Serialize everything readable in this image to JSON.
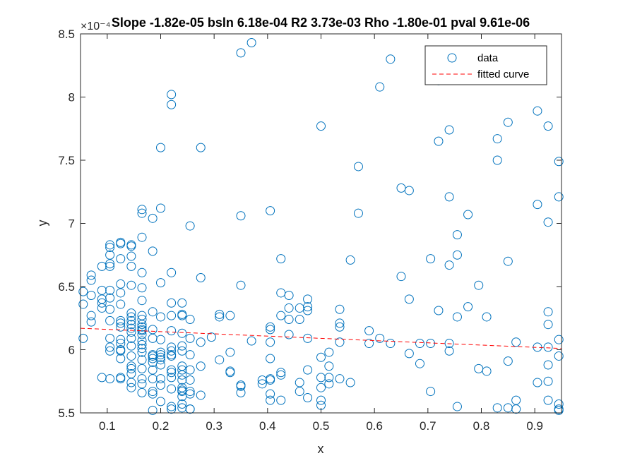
{
  "chart_data": {
    "type": "scatter",
    "title": "Slope -1.82e-05 bsln 6.18e-04 R2 3.73e-03 Rho -1.80e-01 pval 9.61e-06",
    "xlabel": "x",
    "ylabel": "y",
    "y_exponent": "×10⁻⁴",
    "xlim": [
      0.05,
      0.95
    ],
    "ylim": [
      5.5,
      8.5
    ],
    "xticks": [
      "0.1",
      "0.2",
      "0.3",
      "0.4",
      "0.5",
      "0.6",
      "0.7",
      "0.8",
      "0.9"
    ],
    "yticks": [
      "5.5",
      "6",
      "6.5",
      "7",
      "7.5",
      "8",
      "8.5"
    ],
    "grid": false,
    "legend_position": "top-right",
    "legend": [
      "data",
      "fitted curve"
    ],
    "colors": {
      "data": "#0072BD",
      "fit": "#FF0000",
      "axes": "#262626"
    },
    "series": [
      {
        "name": "data",
        "marker": "circle",
        "points": [
          [
            0.055,
            6.46
          ],
          [
            0.055,
            6.36
          ],
          [
            0.055,
            6.09
          ],
          [
            0.07,
            6.59
          ],
          [
            0.07,
            6.55
          ],
          [
            0.07,
            6.43
          ],
          [
            0.07,
            6.27
          ],
          [
            0.07,
            6.22
          ],
          [
            0.09,
            6.66
          ],
          [
            0.09,
            6.47
          ],
          [
            0.09,
            6.4
          ],
          [
            0.09,
            6.37
          ],
          [
            0.09,
            6.33
          ],
          [
            0.09,
            5.78
          ],
          [
            0.105,
            6.83
          ],
          [
            0.105,
            6.81
          ],
          [
            0.105,
            6.75
          ],
          [
            0.105,
            6.68
          ],
          [
            0.105,
            6.66
          ],
          [
            0.105,
            6.47
          ],
          [
            0.105,
            6.41
          ],
          [
            0.105,
            6.32
          ],
          [
            0.105,
            6.23
          ],
          [
            0.105,
            6.09
          ],
          [
            0.105,
            6.02
          ],
          [
            0.105,
            5.99
          ],
          [
            0.105,
            5.77
          ],
          [
            0.125,
            6.85
          ],
          [
            0.125,
            6.84
          ],
          [
            0.125,
            6.72
          ],
          [
            0.125,
            6.52
          ],
          [
            0.125,
            6.45
          ],
          [
            0.125,
            6.36
          ],
          [
            0.125,
            6.23
          ],
          [
            0.125,
            6.21
          ],
          [
            0.125,
            6.18
          ],
          [
            0.125,
            6.08
          ],
          [
            0.125,
            6.05
          ],
          [
            0.125,
            6.0
          ],
          [
            0.125,
            5.99
          ],
          [
            0.125,
            5.93
          ],
          [
            0.125,
            5.78
          ],
          [
            0.125,
            5.77
          ],
          [
            0.145,
            6.83
          ],
          [
            0.145,
            6.82
          ],
          [
            0.145,
            6.74
          ],
          [
            0.145,
            6.66
          ],
          [
            0.145,
            6.51
          ],
          [
            0.145,
            6.29
          ],
          [
            0.145,
            6.26
          ],
          [
            0.145,
            6.23
          ],
          [
            0.145,
            6.2
          ],
          [
            0.145,
            6.17
          ],
          [
            0.145,
            6.14
          ],
          [
            0.145,
            6.09
          ],
          [
            0.145,
            6.03
          ],
          [
            0.145,
            5.95
          ],
          [
            0.145,
            5.87
          ],
          [
            0.145,
            5.85
          ],
          [
            0.145,
            5.81
          ],
          [
            0.145,
            5.74
          ],
          [
            0.145,
            5.7
          ],
          [
            0.165,
            7.11
          ],
          [
            0.165,
            7.08
          ],
          [
            0.165,
            6.89
          ],
          [
            0.165,
            6.61
          ],
          [
            0.165,
            6.49
          ],
          [
            0.165,
            6.39
          ],
          [
            0.165,
            6.27
          ],
          [
            0.165,
            6.24
          ],
          [
            0.165,
            6.2
          ],
          [
            0.165,
            6.18
          ],
          [
            0.165,
            6.16
          ],
          [
            0.165,
            6.15
          ],
          [
            0.165,
            6.12
          ],
          [
            0.165,
            6.07
          ],
          [
            0.165,
            6.04
          ],
          [
            0.165,
            6.01
          ],
          [
            0.165,
            5.98
          ],
          [
            0.165,
            5.92
          ],
          [
            0.165,
            5.85
          ],
          [
            0.165,
            5.77
          ],
          [
            0.165,
            5.73
          ],
          [
            0.165,
            5.66
          ],
          [
            0.185,
            7.04
          ],
          [
            0.185,
            6.78
          ],
          [
            0.185,
            6.3
          ],
          [
            0.185,
            6.16
          ],
          [
            0.185,
            6.09
          ],
          [
            0.185,
            5.96
          ],
          [
            0.185,
            5.95
          ],
          [
            0.185,
            5.93
          ],
          [
            0.185,
            5.9
          ],
          [
            0.185,
            5.84
          ],
          [
            0.185,
            5.77
          ],
          [
            0.185,
            5.67
          ],
          [
            0.185,
            5.65
          ],
          [
            0.185,
            5.52
          ],
          [
            0.2,
            7.6
          ],
          [
            0.2,
            7.12
          ],
          [
            0.2,
            6.53
          ],
          [
            0.2,
            6.26
          ],
          [
            0.2,
            6.08
          ],
          [
            0.2,
            5.98
          ],
          [
            0.2,
            5.96
          ],
          [
            0.2,
            5.94
          ],
          [
            0.2,
            5.92
          ],
          [
            0.2,
            5.88
          ],
          [
            0.2,
            5.77
          ],
          [
            0.2,
            5.72
          ],
          [
            0.2,
            5.59
          ],
          [
            0.22,
            8.02
          ],
          [
            0.22,
            7.94
          ],
          [
            0.22,
            6.61
          ],
          [
            0.22,
            6.37
          ],
          [
            0.22,
            6.27
          ],
          [
            0.22,
            6.15
          ],
          [
            0.22,
            6.02
          ],
          [
            0.22,
            5.99
          ],
          [
            0.22,
            5.96
          ],
          [
            0.22,
            5.95
          ],
          [
            0.22,
            5.84
          ],
          [
            0.22,
            5.82
          ],
          [
            0.22,
            5.78
          ],
          [
            0.22,
            5.69
          ],
          [
            0.22,
            5.55
          ],
          [
            0.22,
            5.53
          ],
          [
            0.24,
            6.37
          ],
          [
            0.24,
            6.28
          ],
          [
            0.24,
            6.27
          ],
          [
            0.24,
            6.13
          ],
          [
            0.24,
            6.03
          ],
          [
            0.24,
            5.99
          ],
          [
            0.24,
            5.87
          ],
          [
            0.24,
            5.84
          ],
          [
            0.24,
            5.8
          ],
          [
            0.24,
            5.76
          ],
          [
            0.24,
            5.7
          ],
          [
            0.24,
            5.68
          ],
          [
            0.24,
            5.67
          ],
          [
            0.24,
            5.63
          ],
          [
            0.24,
            5.57
          ],
          [
            0.24,
            5.54
          ],
          [
            0.255,
            6.98
          ],
          [
            0.255,
            6.24
          ],
          [
            0.255,
            6.09
          ],
          [
            0.255,
            5.96
          ],
          [
            0.255,
            5.84
          ],
          [
            0.255,
            5.76
          ],
          [
            0.255,
            5.67
          ],
          [
            0.255,
            5.65
          ],
          [
            0.255,
            5.53
          ],
          [
            0.255,
            5.53
          ],
          [
            0.275,
            7.6
          ],
          [
            0.275,
            6.57
          ],
          [
            0.275,
            6.06
          ],
          [
            0.275,
            5.87
          ],
          [
            0.275,
            5.64
          ],
          [
            0.295,
            6.1
          ],
          [
            0.31,
            6.28
          ],
          [
            0.31,
            6.26
          ],
          [
            0.31,
            5.92
          ],
          [
            0.33,
            6.27
          ],
          [
            0.33,
            5.98
          ],
          [
            0.33,
            5.83
          ],
          [
            0.33,
            5.82
          ],
          [
            0.35,
            8.35
          ],
          [
            0.35,
            7.06
          ],
          [
            0.35,
            6.51
          ],
          [
            0.35,
            5.72
          ],
          [
            0.35,
            5.71
          ],
          [
            0.35,
            5.66
          ],
          [
            0.37,
            8.43
          ],
          [
            0.37,
            6.07
          ],
          [
            0.39,
            5.76
          ],
          [
            0.39,
            5.73
          ],
          [
            0.405,
            7.1
          ],
          [
            0.405,
            6.18
          ],
          [
            0.405,
            6.16
          ],
          [
            0.405,
            6.06
          ],
          [
            0.405,
            5.93
          ],
          [
            0.405,
            5.77
          ],
          [
            0.405,
            5.76
          ],
          [
            0.405,
            5.65
          ],
          [
            0.405,
            5.6
          ],
          [
            0.425,
            6.72
          ],
          [
            0.425,
            6.45
          ],
          [
            0.425,
            6.27
          ],
          [
            0.425,
            5.82
          ],
          [
            0.425,
            5.8
          ],
          [
            0.425,
            5.6
          ],
          [
            0.44,
            6.43
          ],
          [
            0.44,
            6.33
          ],
          [
            0.44,
            6.24
          ],
          [
            0.44,
            6.12
          ],
          [
            0.46,
            6.33
          ],
          [
            0.46,
            6.24
          ],
          [
            0.46,
            5.74
          ],
          [
            0.46,
            5.67
          ],
          [
            0.475,
            6.4
          ],
          [
            0.475,
            6.34
          ],
          [
            0.475,
            6.31
          ],
          [
            0.475,
            6.09
          ],
          [
            0.475,
            5.84
          ],
          [
            0.475,
            5.62
          ],
          [
            0.5,
            7.77
          ],
          [
            0.5,
            5.94
          ],
          [
            0.5,
            5.78
          ],
          [
            0.5,
            5.7
          ],
          [
            0.5,
            5.6
          ],
          [
            0.5,
            5.56
          ],
          [
            0.515,
            5.98
          ],
          [
            0.515,
            5.87
          ],
          [
            0.515,
            5.78
          ],
          [
            0.515,
            5.73
          ],
          [
            0.535,
            6.32
          ],
          [
            0.535,
            6.21
          ],
          [
            0.535,
            6.18
          ],
          [
            0.535,
            6.06
          ],
          [
            0.535,
            5.77
          ],
          [
            0.555,
            6.71
          ],
          [
            0.555,
            5.74
          ],
          [
            0.57,
            7.45
          ],
          [
            0.57,
            7.08
          ],
          [
            0.59,
            6.15
          ],
          [
            0.59,
            6.05
          ],
          [
            0.61,
            8.08
          ],
          [
            0.61,
            6.09
          ],
          [
            0.63,
            8.3
          ],
          [
            0.63,
            6.05
          ],
          [
            0.65,
            7.28
          ],
          [
            0.65,
            6.58
          ],
          [
            0.665,
            7.26
          ],
          [
            0.665,
            6.4
          ],
          [
            0.665,
            5.97
          ],
          [
            0.685,
            6.05
          ],
          [
            0.685,
            5.89
          ],
          [
            0.705,
            6.72
          ],
          [
            0.705,
            6.05
          ],
          [
            0.705,
            5.67
          ],
          [
            0.72,
            8.13
          ],
          [
            0.72,
            7.65
          ],
          [
            0.72,
            6.31
          ],
          [
            0.74,
            7.74
          ],
          [
            0.74,
            7.21
          ],
          [
            0.74,
            6.67
          ],
          [
            0.74,
            6.05
          ],
          [
            0.74,
            5.99
          ],
          [
            0.755,
            6.91
          ],
          [
            0.755,
            6.75
          ],
          [
            0.755,
            6.26
          ],
          [
            0.755,
            5.55
          ],
          [
            0.775,
            7.07
          ],
          [
            0.775,
            6.34
          ],
          [
            0.795,
            6.51
          ],
          [
            0.795,
            5.85
          ],
          [
            0.81,
            6.26
          ],
          [
            0.81,
            5.83
          ],
          [
            0.83,
            7.67
          ],
          [
            0.83,
            7.5
          ],
          [
            0.83,
            5.54
          ],
          [
            0.85,
            7.8
          ],
          [
            0.85,
            6.7
          ],
          [
            0.85,
            5.91
          ],
          [
            0.85,
            5.54
          ],
          [
            0.865,
            6.06
          ],
          [
            0.865,
            5.6
          ],
          [
            0.865,
            5.53
          ],
          [
            0.905,
            7.89
          ],
          [
            0.905,
            7.15
          ],
          [
            0.905,
            6.02
          ],
          [
            0.905,
            5.74
          ],
          [
            0.925,
            7.77
          ],
          [
            0.925,
            7.01
          ],
          [
            0.925,
            6.3
          ],
          [
            0.925,
            6.2
          ],
          [
            0.925,
            6.02
          ],
          [
            0.925,
            5.88
          ],
          [
            0.925,
            5.75
          ],
          [
            0.925,
            5.6
          ],
          [
            0.945,
            7.49
          ],
          [
            0.945,
            7.21
          ],
          [
            0.945,
            6.08
          ],
          [
            0.945,
            5.95
          ],
          [
            0.945,
            5.57
          ],
          [
            0.945,
            5.53
          ],
          [
            0.945,
            5.52
          ]
        ]
      },
      {
        "name": "fitted curve",
        "line_style": "dashed",
        "points": [
          [
            0.05,
            6.17
          ],
          [
            0.95,
            6.01
          ]
        ]
      }
    ]
  }
}
